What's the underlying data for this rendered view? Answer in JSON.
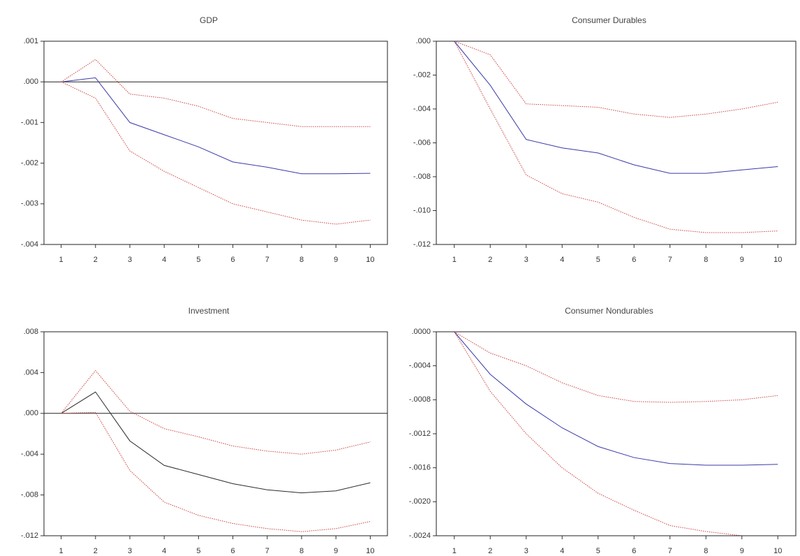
{
  "chart_data": [
    {
      "type": "line",
      "title": "GDP",
      "x": [
        1,
        2,
        3,
        4,
        5,
        6,
        7,
        8,
        9,
        10
      ],
      "xlim": [
        0.5,
        10.5
      ],
      "xticks": [
        1,
        2,
        3,
        4,
        5,
        6,
        7,
        8,
        9,
        10
      ],
      "ylim": [
        -0.004,
        0.001
      ],
      "yticks": [
        {
          "value": 0.001,
          "label": ".001"
        },
        {
          "value": 0,
          "label": ".000"
        },
        {
          "value": -0.001,
          "label": "-.001"
        },
        {
          "value": -0.002,
          "label": "-.002"
        },
        {
          "value": -0.003,
          "label": "-.003"
        },
        {
          "value": -0.004,
          "label": "-.004"
        }
      ],
      "zero_line": true,
      "series": [
        {
          "color": "#3a3aa8",
          "dashed": false,
          "values": [
            0,
            0.0001,
            -0.001,
            -0.0013,
            -0.0016,
            -0.00197,
            -0.0021,
            -0.00226,
            -0.00226,
            -0.00225
          ]
        },
        {
          "color": "#cc4444",
          "dashed": true,
          "values": [
            0,
            0.00055,
            -0.0003,
            -0.0004,
            -0.0006,
            -0.0009,
            -0.001,
            -0.0011,
            -0.0011,
            -0.0011
          ]
        },
        {
          "color": "#cc4444",
          "dashed": true,
          "values": [
            0,
            -0.0004,
            -0.0017,
            -0.0022,
            -0.0026,
            -0.003,
            -0.0032,
            -0.0034,
            -0.0035,
            -0.0034
          ]
        }
      ]
    },
    {
      "type": "line",
      "title": "Consumer Durables",
      "x": [
        1,
        2,
        3,
        4,
        5,
        6,
        7,
        8,
        9,
        10
      ],
      "xlim": [
        0.5,
        10.5
      ],
      "xticks": [
        1,
        2,
        3,
        4,
        5,
        6,
        7,
        8,
        9,
        10
      ],
      "ylim": [
        -0.012,
        0
      ],
      "yticks": [
        {
          "value": 0,
          "label": ".000"
        },
        {
          "value": -0.002,
          "label": "-.002"
        },
        {
          "value": -0.004,
          "label": "-.004"
        },
        {
          "value": -0.006,
          "label": "-.006"
        },
        {
          "value": -0.008,
          "label": "-.008"
        },
        {
          "value": -0.01,
          "label": "-.010"
        },
        {
          "value": -0.012,
          "label": "-.012"
        }
      ],
      "zero_line": false,
      "series": [
        {
          "color": "#3a3aa8",
          "dashed": false,
          "values": [
            0,
            -0.0026,
            -0.0058,
            -0.0063,
            -0.0066,
            -0.0073,
            -0.0078,
            -0.0078,
            -0.0076,
            -0.0074
          ]
        },
        {
          "color": "#cc4444",
          "dashed": true,
          "values": [
            0,
            -0.0008,
            -0.0037,
            -0.0038,
            -0.0039,
            -0.0043,
            -0.0045,
            -0.0043,
            -0.004,
            -0.0036
          ]
        },
        {
          "color": "#cc4444",
          "dashed": true,
          "values": [
            0,
            -0.004,
            -0.0079,
            -0.009,
            -0.0095,
            -0.0104,
            -0.0111,
            -0.0113,
            -0.0113,
            -0.0112
          ]
        }
      ]
    },
    {
      "type": "line",
      "title": "Investment",
      "x": [
        1,
        2,
        3,
        4,
        5,
        6,
        7,
        8,
        9,
        10
      ],
      "xlim": [
        0.5,
        10.5
      ],
      "xticks": [
        1,
        2,
        3,
        4,
        5,
        6,
        7,
        8,
        9,
        10
      ],
      "ylim": [
        -0.012,
        0.008
      ],
      "yticks": [
        {
          "value": 0.008,
          "label": ".008"
        },
        {
          "value": 0.004,
          "label": ".004"
        },
        {
          "value": 0,
          "label": ".000"
        },
        {
          "value": -0.004,
          "label": "-.004"
        },
        {
          "value": -0.008,
          "label": "-.008"
        },
        {
          "value": -0.012,
          "label": "-.012"
        }
      ],
      "zero_line": true,
      "series": [
        {
          "color": "#2a2a2a",
          "dashed": false,
          "values": [
            0,
            0.0021,
            -0.0027,
            -0.0051,
            -0.006,
            -0.0069,
            -0.0075,
            -0.0078,
            -0.0076,
            -0.0068
          ]
        },
        {
          "color": "#cc4444",
          "dashed": true,
          "values": [
            0,
            0.0042,
            0.0002,
            -0.0015,
            -0.0023,
            -0.0032,
            -0.0037,
            -0.004,
            -0.0036,
            -0.0028
          ]
        },
        {
          "color": "#cc4444",
          "dashed": true,
          "values": [
            0,
            0.0001,
            -0.0056,
            -0.0087,
            -0.01,
            -0.0108,
            -0.0113,
            -0.0116,
            -0.0113,
            -0.0106
          ]
        }
      ]
    },
    {
      "type": "line",
      "title": "Consumer Nondurables",
      "x": [
        1,
        2,
        3,
        4,
        5,
        6,
        7,
        8,
        9,
        10
      ],
      "xlim": [
        0.5,
        10.5
      ],
      "xticks": [
        1,
        2,
        3,
        4,
        5,
        6,
        7,
        8,
        9,
        10
      ],
      "ylim": [
        -0.0024,
        0
      ],
      "yticks": [
        {
          "value": 0,
          "label": ".0000"
        },
        {
          "value": -0.0004,
          "label": "-.0004"
        },
        {
          "value": -0.0008,
          "label": "-.0008"
        },
        {
          "value": -0.0012,
          "label": "-.0012"
        },
        {
          "value": -0.0016,
          "label": "-.0016"
        },
        {
          "value": -0.002,
          "label": "-.0020"
        },
        {
          "value": -0.0024,
          "label": "-.0024"
        }
      ],
      "zero_line": false,
      "series": [
        {
          "color": "#3a3aa8",
          "dashed": false,
          "values": [
            0,
            -0.0005,
            -0.00085,
            -0.00113,
            -0.00135,
            -0.00148,
            -0.00155,
            -0.00157,
            -0.00157,
            -0.00156
          ]
        },
        {
          "color": "#cc4444",
          "dashed": true,
          "values": [
            0,
            -0.00025,
            -0.0004,
            -0.0006,
            -0.00075,
            -0.00082,
            -0.00083,
            -0.00082,
            -0.0008,
            -0.00075
          ]
        },
        {
          "color": "#cc4444",
          "dashed": true,
          "values": [
            0,
            -0.0007,
            -0.0012,
            -0.0016,
            -0.0019,
            -0.0021,
            -0.00228,
            -0.00235,
            -0.0024,
            -0.0024
          ]
        }
      ]
    }
  ]
}
